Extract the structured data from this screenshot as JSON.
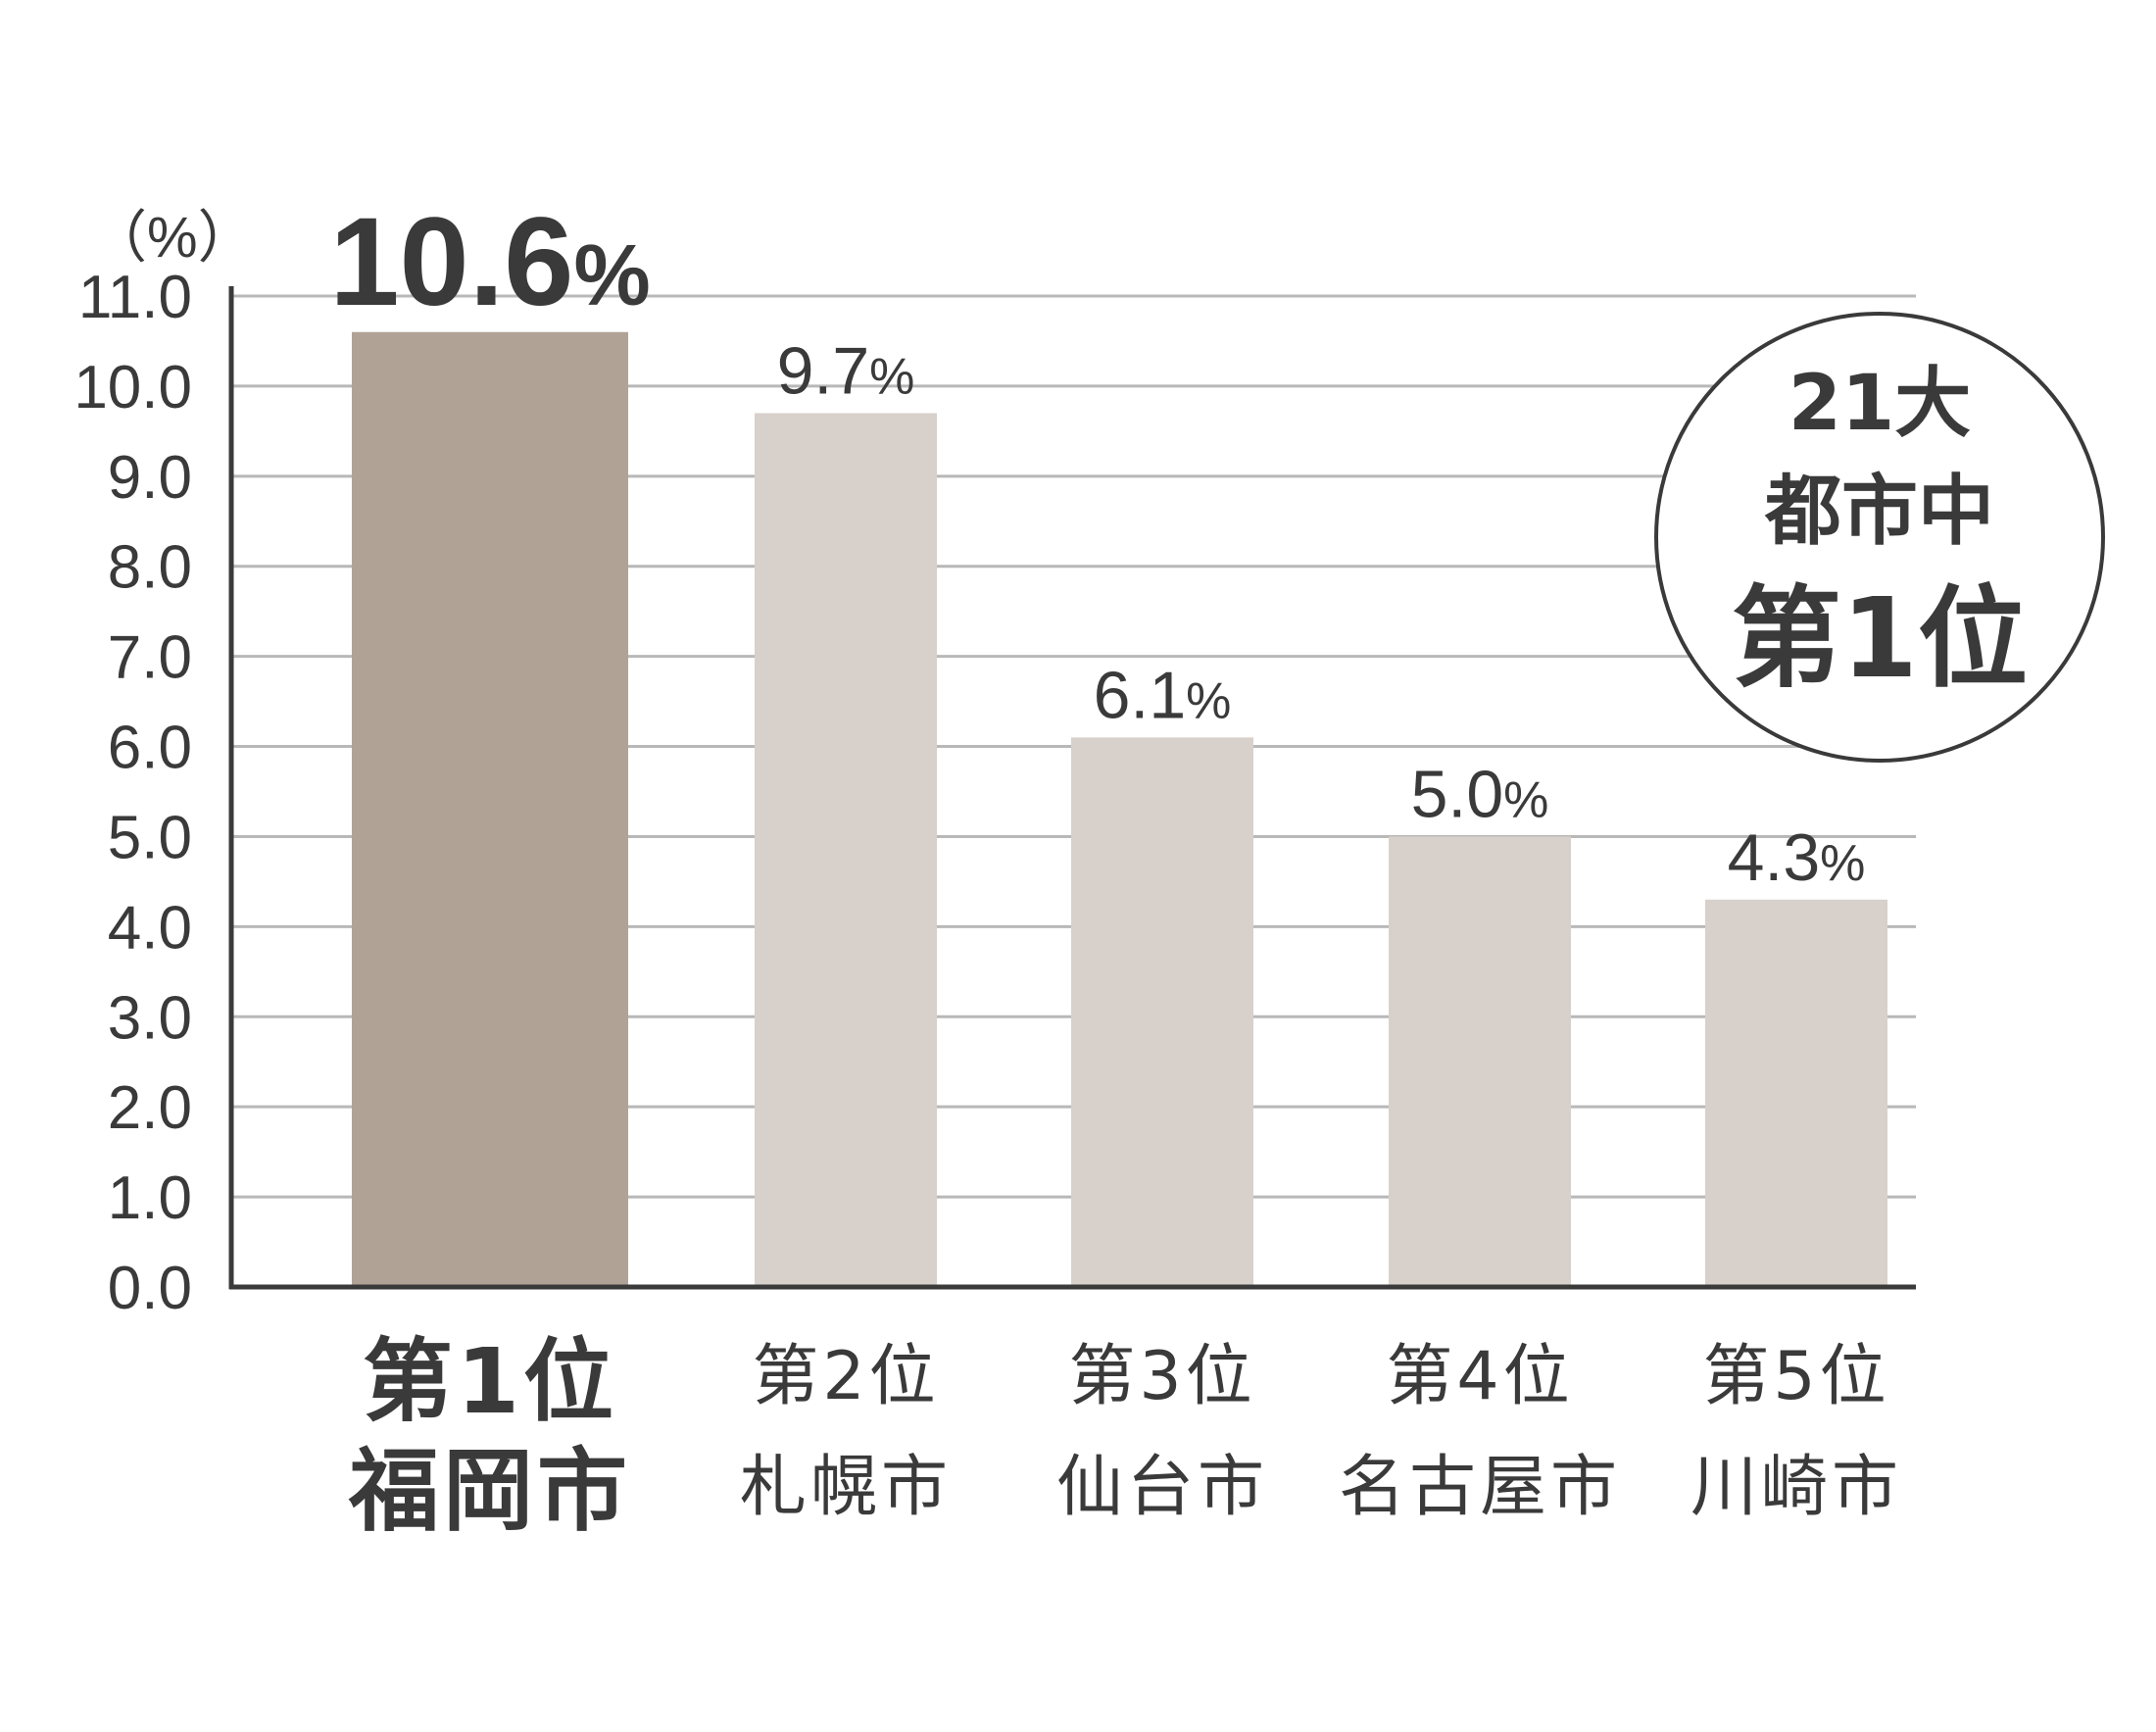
{
  "chart_data": {
    "type": "bar",
    "unit_label": "（%）",
    "ylim": [
      0,
      11
    ],
    "y_ticks": [
      "0.0",
      "1.0",
      "2.0",
      "3.0",
      "4.0",
      "5.0",
      "6.0",
      "7.0",
      "8.0",
      "9.0",
      "10.0",
      "11.0"
    ],
    "grid": true,
    "categories": [
      {
        "rank": "第1位",
        "city": "福岡市"
      },
      {
        "rank": "第2位",
        "city": "札幌市"
      },
      {
        "rank": "第3位",
        "city": "仙台市"
      },
      {
        "rank": "第4位",
        "city": "名古屋市"
      },
      {
        "rank": "第5位",
        "city": "川崎市"
      }
    ],
    "values": [
      10.6,
      9.7,
      6.1,
      5.0,
      4.3
    ],
    "value_labels": [
      "10.6",
      "9.7",
      "6.1",
      "5.0",
      "4.3"
    ],
    "value_suffix": "%",
    "highlight_index": 0,
    "colors": {
      "highlight": "#b0a396",
      "bar": "#d8d0cb",
      "axis": "#3a3a3a",
      "grid": "#b8b8b8",
      "text": "#3a3a3a"
    }
  },
  "badge": {
    "line1": "21大",
    "line2": "都市中",
    "line3": "第1位"
  }
}
